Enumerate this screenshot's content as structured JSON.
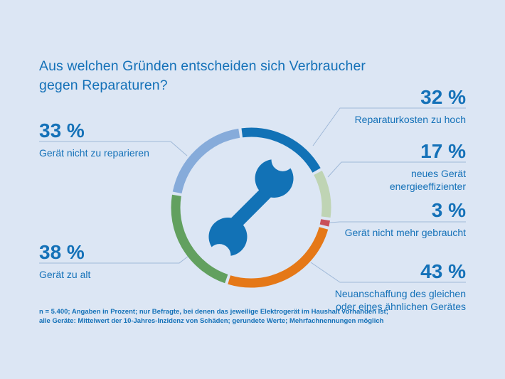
{
  "page": {
    "background_color": "#dce6f4",
    "accent_color": "#1471b8",
    "connector_color": "#a0b9d8"
  },
  "title": {
    "line1": "Aus welchen Gründen entscheiden sich Verbraucher",
    "line2": "gegen Reparaturen?"
  },
  "callouts": {
    "left": [
      {
        "value": "33 %",
        "line1": "Gerät nicht zu reparieren",
        "line2": ""
      },
      {
        "value": "38 %",
        "line1": "Gerät zu alt",
        "line2": ""
      }
    ],
    "right": [
      {
        "value": "32 %",
        "line1": "Reparaturkosten zu hoch",
        "line2": ""
      },
      {
        "value": "17 %",
        "line1": "neues Gerät",
        "line2": "energieeffizienter"
      },
      {
        "value": "3 %",
        "line1": "Gerät nicht mehr gebraucht",
        "line2": ""
      },
      {
        "value": "43 %",
        "line1": "Neuanschaffung des gleichen",
        "line2": "oder eines ähnlichen Gerätes"
      }
    ]
  },
  "footnote": {
    "line1": "n = 5.400; Angaben in Prozent; nur Befragte, bei denen das jeweilige Elektrogerät im Haushalt vorhanden ist;",
    "line2": "alle Geräte: Mittelwert der 10-Jahres-Inzidenz von Schäden; gerundete Werte; Mehrfachnennungen möglich"
  },
  "chart_data": {
    "type": "donut",
    "title": "Aus welchen Gründen entscheiden sich Verbraucher gegen Reparaturen?",
    "unit": "%",
    "values_sum": 166,
    "start_angle_deg": -8,
    "gap_deg": 2.2,
    "center_icon": "wrench",
    "center_icon_color": "#1272b6",
    "segments": [
      {
        "label": "Reparaturkosten zu hoch",
        "value": 32,
        "color": "#1272b6"
      },
      {
        "label": "neues Gerät energieeffizienter",
        "value": 17,
        "color": "#bfd4b4"
      },
      {
        "label": "Gerät nicht mehr gebraucht",
        "value": 3,
        "color": "#c9505a"
      },
      {
        "label": "Neuanschaffung des gleichen oder eines ähnlichen Gerätes",
        "value": 43,
        "color": "#e57817"
      },
      {
        "label": "Gerät zu alt",
        "value": 38,
        "color": "#62a05f"
      },
      {
        "label": "Gerät nicht zu reparieren",
        "value": 33,
        "color": "#86abda"
      }
    ]
  }
}
